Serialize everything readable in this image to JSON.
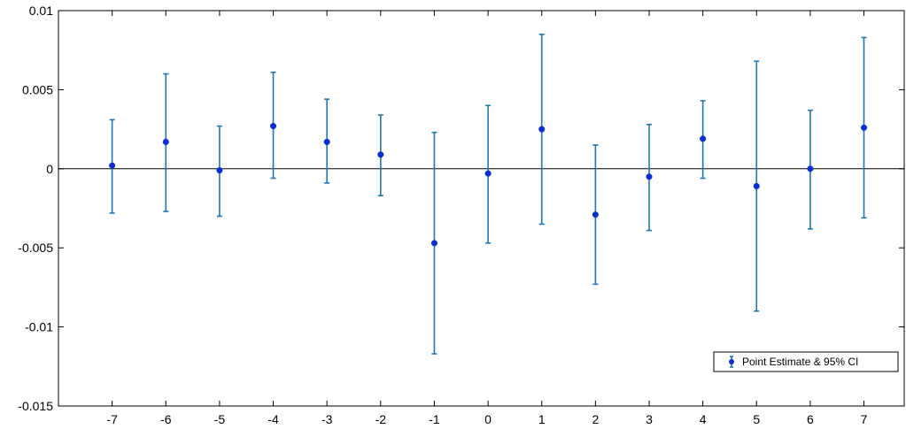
{
  "chart_data": {
    "type": "scatter",
    "x": [
      -7,
      -6,
      -5,
      -4,
      -3,
      -2,
      -1,
      0,
      1,
      2,
      3,
      4,
      5,
      6,
      7
    ],
    "series": [
      {
        "name": "Point Estimate & 95% CI",
        "values": [
          0.0002,
          0.0017,
          -0.0001,
          0.0027,
          0.0017,
          0.0009,
          -0.0047,
          -0.0003,
          0.0025,
          -0.0029,
          -0.0005,
          0.0019,
          -0.0011,
          0.0,
          0.0026
        ],
        "ci_low": [
          -0.0028,
          -0.0027,
          -0.003,
          -0.0006,
          -0.0009,
          -0.0017,
          -0.0117,
          -0.0047,
          -0.0035,
          -0.0073,
          -0.0039,
          -0.0006,
          -0.009,
          -0.0038,
          -0.0031
        ],
        "ci_high": [
          0.0031,
          0.006,
          0.0027,
          0.0061,
          0.0044,
          0.0034,
          0.0023,
          0.004,
          0.0085,
          0.0015,
          0.0028,
          0.0043,
          0.0068,
          0.0037,
          0.0083
        ]
      }
    ],
    "x_tick_labels": [
      "-7",
      "-6",
      "-5",
      "-4",
      "-3",
      "-2",
      "-1",
      "0",
      "1",
      "2",
      "3",
      "4",
      "5",
      "6",
      "7"
    ],
    "y_tick_labels": [
      "0.01",
      "0.005",
      "0",
      "-0.005",
      "-0.01",
      "-0.015"
    ],
    "y_ticks": [
      0.01,
      0.005,
      0,
      -0.005,
      -0.01,
      -0.015
    ],
    "xlim": [
      -8,
      7.75
    ],
    "ylim": [
      -0.015,
      0.01
    ],
    "reference_line_y": 0,
    "grid": false,
    "legend": {
      "position": "bottom-right",
      "label": "Point Estimate & 95% CI"
    },
    "colors": {
      "marker": "#0a2fd1",
      "errorbar": "#1f77b4",
      "axis": "#000000"
    }
  }
}
